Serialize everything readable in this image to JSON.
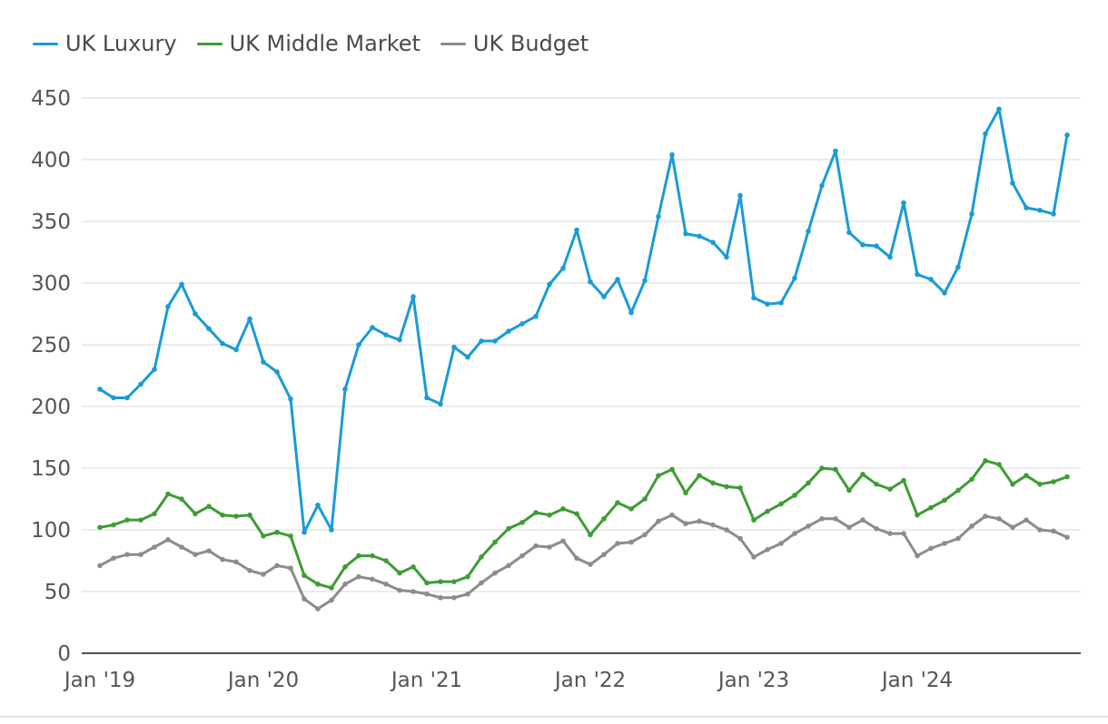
{
  "chart_data": {
    "type": "line",
    "x_tick_labels": [
      "Jan '19",
      "Jan '20",
      "Jan '21",
      "Jan '22",
      "Jan '23",
      "Jan '24"
    ],
    "y_ticks": [
      0,
      50,
      100,
      150,
      200,
      250,
      300,
      350,
      400,
      450
    ],
    "ylim": [
      0,
      450
    ],
    "grid": true,
    "legend_position": "top-left",
    "series": [
      {
        "name": "UK Luxury",
        "color": "#1a9bd7",
        "values": [
          214,
          207,
          207,
          218,
          230,
          281,
          299,
          275,
          263,
          251,
          246,
          271,
          236,
          228,
          206,
          98,
          120,
          100,
          214,
          250,
          264,
          258,
          254,
          289,
          207,
          202,
          248,
          240,
          253,
          253,
          261,
          267,
          273,
          299,
          312,
          343,
          301,
          289,
          303,
          276,
          302,
          354,
          404,
          340,
          338,
          333,
          321,
          371,
          288,
          283,
          284,
          304,
          342,
          379,
          407,
          341,
          331,
          330,
          321,
          365,
          307,
          303,
          292,
          313,
          356,
          421,
          441,
          381,
          361,
          359,
          356,
          420
        ]
      },
      {
        "name": "UK Middle Market",
        "color": "#3f9c35",
        "values": [
          102,
          104,
          108,
          108,
          113,
          129,
          125,
          113,
          119,
          112,
          111,
          112,
          95,
          98,
          95,
          63,
          56,
          53,
          70,
          79,
          79,
          75,
          65,
          70,
          57,
          58,
          58,
          62,
          78,
          90,
          101,
          106,
          114,
          112,
          117,
          113,
          96,
          109,
          122,
          117,
          125,
          144,
          149,
          130,
          144,
          138,
          135,
          134,
          108,
          115,
          121,
          128,
          138,
          150,
          149,
          132,
          145,
          137,
          133,
          140,
          112,
          118,
          124,
          132,
          141,
          156,
          153,
          137,
          144,
          137,
          139,
          143
        ]
      },
      {
        "name": "UK Budget",
        "color": "#8c8c8c",
        "values": [
          71,
          77,
          80,
          80,
          86,
          92,
          86,
          80,
          83,
          76,
          74,
          67,
          64,
          71,
          69,
          44,
          36,
          43,
          56,
          62,
          60,
          56,
          51,
          50,
          48,
          45,
          45,
          48,
          57,
          65,
          71,
          79,
          87,
          86,
          91,
          77,
          72,
          80,
          89,
          90,
          96,
          107,
          112,
          105,
          107,
          104,
          100,
          93,
          78,
          84,
          89,
          97,
          103,
          109,
          109,
          102,
          108,
          101,
          97,
          97,
          79,
          85,
          89,
          93,
          103,
          111,
          109,
          102,
          108,
          100,
          99,
          94
        ]
      }
    ]
  }
}
